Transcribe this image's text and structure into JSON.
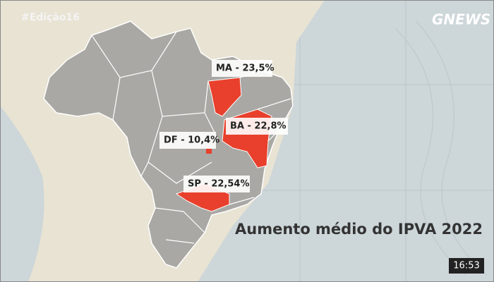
{
  "watermark": "#Edição16",
  "logo": "GNEWS",
  "title": "Aumento médio do IPVA 2022",
  "clock": "16:53",
  "states": [
    {
      "label": "MA - 23,5%"
    },
    {
      "label": "BA - 22,8%"
    },
    {
      "label": "DF - 10,4%"
    },
    {
      "label": "SP - 22,54%"
    }
  ]
}
